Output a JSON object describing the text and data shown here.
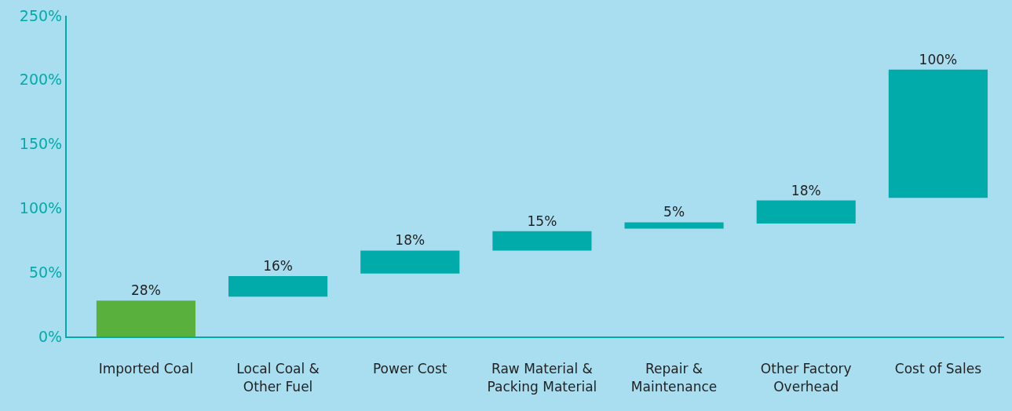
{
  "chart_data": {
    "type": "bar",
    "categories": [
      "Imported Coal",
      "Local Coal & Other Fuel",
      "Power Cost",
      "Raw Material & Packing Material",
      "Repair & Maintenance",
      "Other Factory Overhead",
      "Cost of Sales"
    ],
    "values": [
      28,
      16,
      18,
      15,
      5,
      18,
      100
    ],
    "base": [
      0,
      31,
      49,
      67,
      84,
      88,
      108
    ],
    "colors": [
      "#5ab03c",
      "#00aba9",
      "#00aba9",
      "#00aba9",
      "#00aba9",
      "#00aba9",
      "#00aba9"
    ],
    "value_labels": [
      "28%",
      "16%",
      "18%",
      "15%",
      "5%",
      "18%",
      "100%"
    ],
    "ylim": [
      0,
      250
    ],
    "yticks": [
      {
        "value": 0,
        "label": "0%"
      },
      {
        "value": 50,
        "label": "50%"
      },
      {
        "value": 100,
        "label": "100%"
      },
      {
        "value": 150,
        "label": "150%"
      },
      {
        "value": 200,
        "label": "200%"
      },
      {
        "value": 250,
        "label": "250%"
      }
    ],
    "grid": false,
    "legend": false
  }
}
